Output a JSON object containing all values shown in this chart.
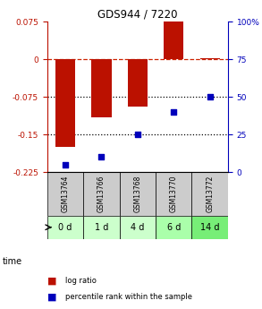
{
  "title": "GDS944 / 7220",
  "samples": [
    "GSM13764",
    "GSM13766",
    "GSM13768",
    "GSM13770",
    "GSM13772"
  ],
  "time_labels": [
    "0 d",
    "1 d",
    "4 d",
    "6 d",
    "14 d"
  ],
  "log_ratio": [
    -0.175,
    -0.115,
    -0.095,
    0.075,
    0.002
  ],
  "percentile": [
    5,
    10,
    25,
    40,
    50
  ],
  "ylim_left": [
    -0.225,
    0.075
  ],
  "ylim_right": [
    0,
    100
  ],
  "yticks_left": [
    0.075,
    0,
    -0.075,
    -0.15,
    -0.225
  ],
  "yticks_right": [
    100,
    75,
    50,
    25,
    0
  ],
  "bar_color": "#bb1100",
  "dot_color": "#0000bb",
  "dashed_color": "#cc2200",
  "dotted_color": "#000000",
  "sample_bg": "#cccccc",
  "time_bg_colors": [
    "#ccffcc",
    "#ccffcc",
    "#ccffcc",
    "#aaffaa",
    "#77ee77"
  ],
  "legend_bar_label": "log ratio",
  "legend_dot_label": "percentile rank within the sample"
}
